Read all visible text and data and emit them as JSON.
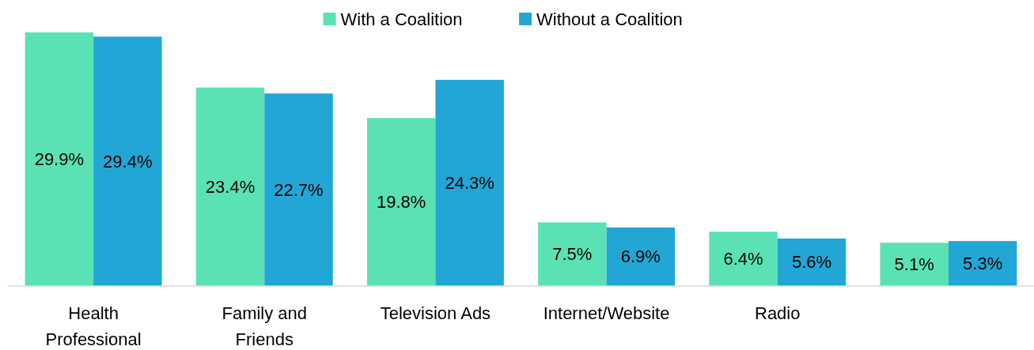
{
  "chart_data": {
    "type": "bar",
    "categories": [
      "Health Professional",
      "Family and Friends",
      "Television Ads",
      "Internet/Website",
      "Radio",
      null
    ],
    "series": [
      {
        "name": "With a Coalition",
        "color": "#5ae2b6",
        "values": [
          29.9,
          23.4,
          19.8,
          7.5,
          6.4,
          5.1
        ],
        "value_labels": [
          "29.9%",
          "23.4%",
          "19.8%",
          "7.5%",
          "6.4%",
          "5.1%"
        ]
      },
      {
        "name": "Without a Coalition",
        "color": "#22a6d6",
        "values": [
          29.4,
          22.7,
          24.3,
          6.9,
          5.6,
          5.3
        ],
        "value_labels": [
          "29.4%",
          "22.7%",
          "24.3%",
          "6.9%",
          "5.6%",
          "5.3%"
        ]
      }
    ],
    "legend": "top"
  }
}
